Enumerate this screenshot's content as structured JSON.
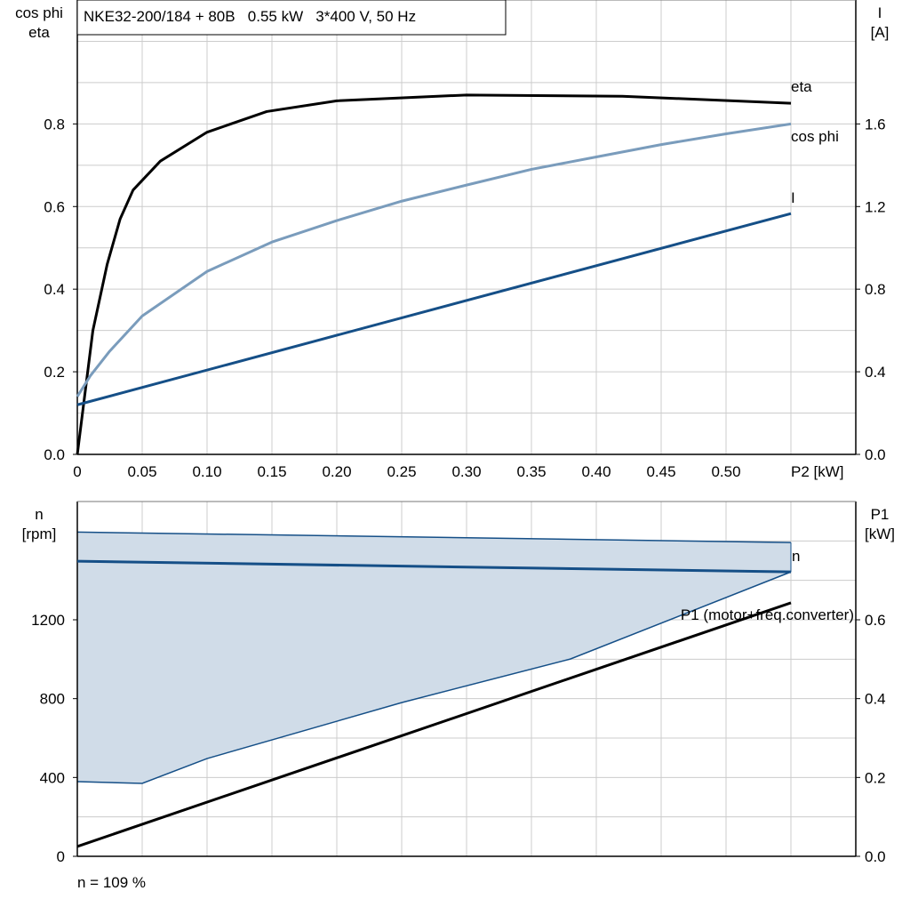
{
  "title": "NKE32-200/184 + 80B   0.55 kW   3*400 V, 50 Hz",
  "footer": "n = 109 %",
  "colors": {
    "eta": "#000000",
    "cos_phi": "#7a9cbc",
    "I": "#154f87",
    "n": "#154f87",
    "band_fill": "#d0dce8",
    "P1": "#000000",
    "grid": "#cccccc"
  },
  "chart_data": [
    {
      "type": "line",
      "ylabel": "cos phi\neta",
      "y2label": "I\n[A]",
      "xlabel": "P2 [kW]",
      "xlim": [
        0,
        0.6
      ],
      "ylim": [
        0,
        1.1
      ],
      "y2lim": [
        0,
        2.2
      ],
      "grid": true,
      "xticks": [
        "0",
        "0.05",
        "0.10",
        "0.15",
        "0.20",
        "0.25",
        "0.30",
        "0.35",
        "0.40",
        "0.45",
        "0.50"
      ],
      "yticks": [
        "0.0",
        "0.2",
        "0.4",
        "0.6",
        "0.8"
      ],
      "y2ticks": [
        "0.0",
        "0.4",
        "0.8",
        "1.2",
        "1.6"
      ],
      "series": [
        {
          "name": "eta",
          "axis": "left",
          "x": [
            0,
            0.012,
            0.023,
            0.033,
            0.043,
            0.064,
            0.1,
            0.146,
            0.2,
            0.3,
            0.42,
            0.55
          ],
          "y": [
            0,
            0.3,
            0.46,
            0.57,
            0.64,
            0.71,
            0.78,
            0.83,
            0.856,
            0.87,
            0.867,
            0.85
          ]
        },
        {
          "name": "cos phi",
          "axis": "left",
          "x": [
            0,
            0.01,
            0.025,
            0.05,
            0.1,
            0.15,
            0.2,
            0.25,
            0.3,
            0.35,
            0.4,
            0.45,
            0.5,
            0.55
          ],
          "y": [
            0.14,
            0.19,
            0.25,
            0.335,
            0.443,
            0.514,
            0.566,
            0.613,
            0.652,
            0.69,
            0.72,
            0.75,
            0.776,
            0.8
          ]
        },
        {
          "name": "I",
          "axis": "right",
          "x": [
            0,
            0.55
          ],
          "y": [
            0.24,
            1.166
          ]
        }
      ]
    },
    {
      "type": "line",
      "ylabel": "n\n[rpm]",
      "y2label": "P1\n[kW]",
      "xlim": [
        0,
        0.6
      ],
      "ylim": [
        0,
        1800
      ],
      "y2lim": [
        0,
        0.9
      ],
      "grid": true,
      "yticks": [
        "0",
        "400",
        "800",
        "1200"
      ],
      "y2ticks": [
        "0.0",
        "0.2",
        "0.4",
        "0.6"
      ],
      "band": {
        "upper": {
          "x": [
            0,
            0.55
          ],
          "y": [
            1645,
            1592
          ]
        },
        "lower": {
          "x": [
            0,
            0.05,
            0.1,
            0.25,
            0.38,
            0.55
          ],
          "y": [
            379,
            370,
            496,
            780,
            1001,
            1443
          ]
        }
      },
      "series": [
        {
          "name": "n",
          "axis": "left",
          "x": [
            0,
            0.55
          ],
          "y": [
            1497,
            1443
          ]
        },
        {
          "name": "P1 (motor+freq.converter)",
          "axis": "right",
          "x": [
            0,
            0.55
          ],
          "y": [
            0.025,
            0.643
          ]
        }
      ]
    }
  ]
}
